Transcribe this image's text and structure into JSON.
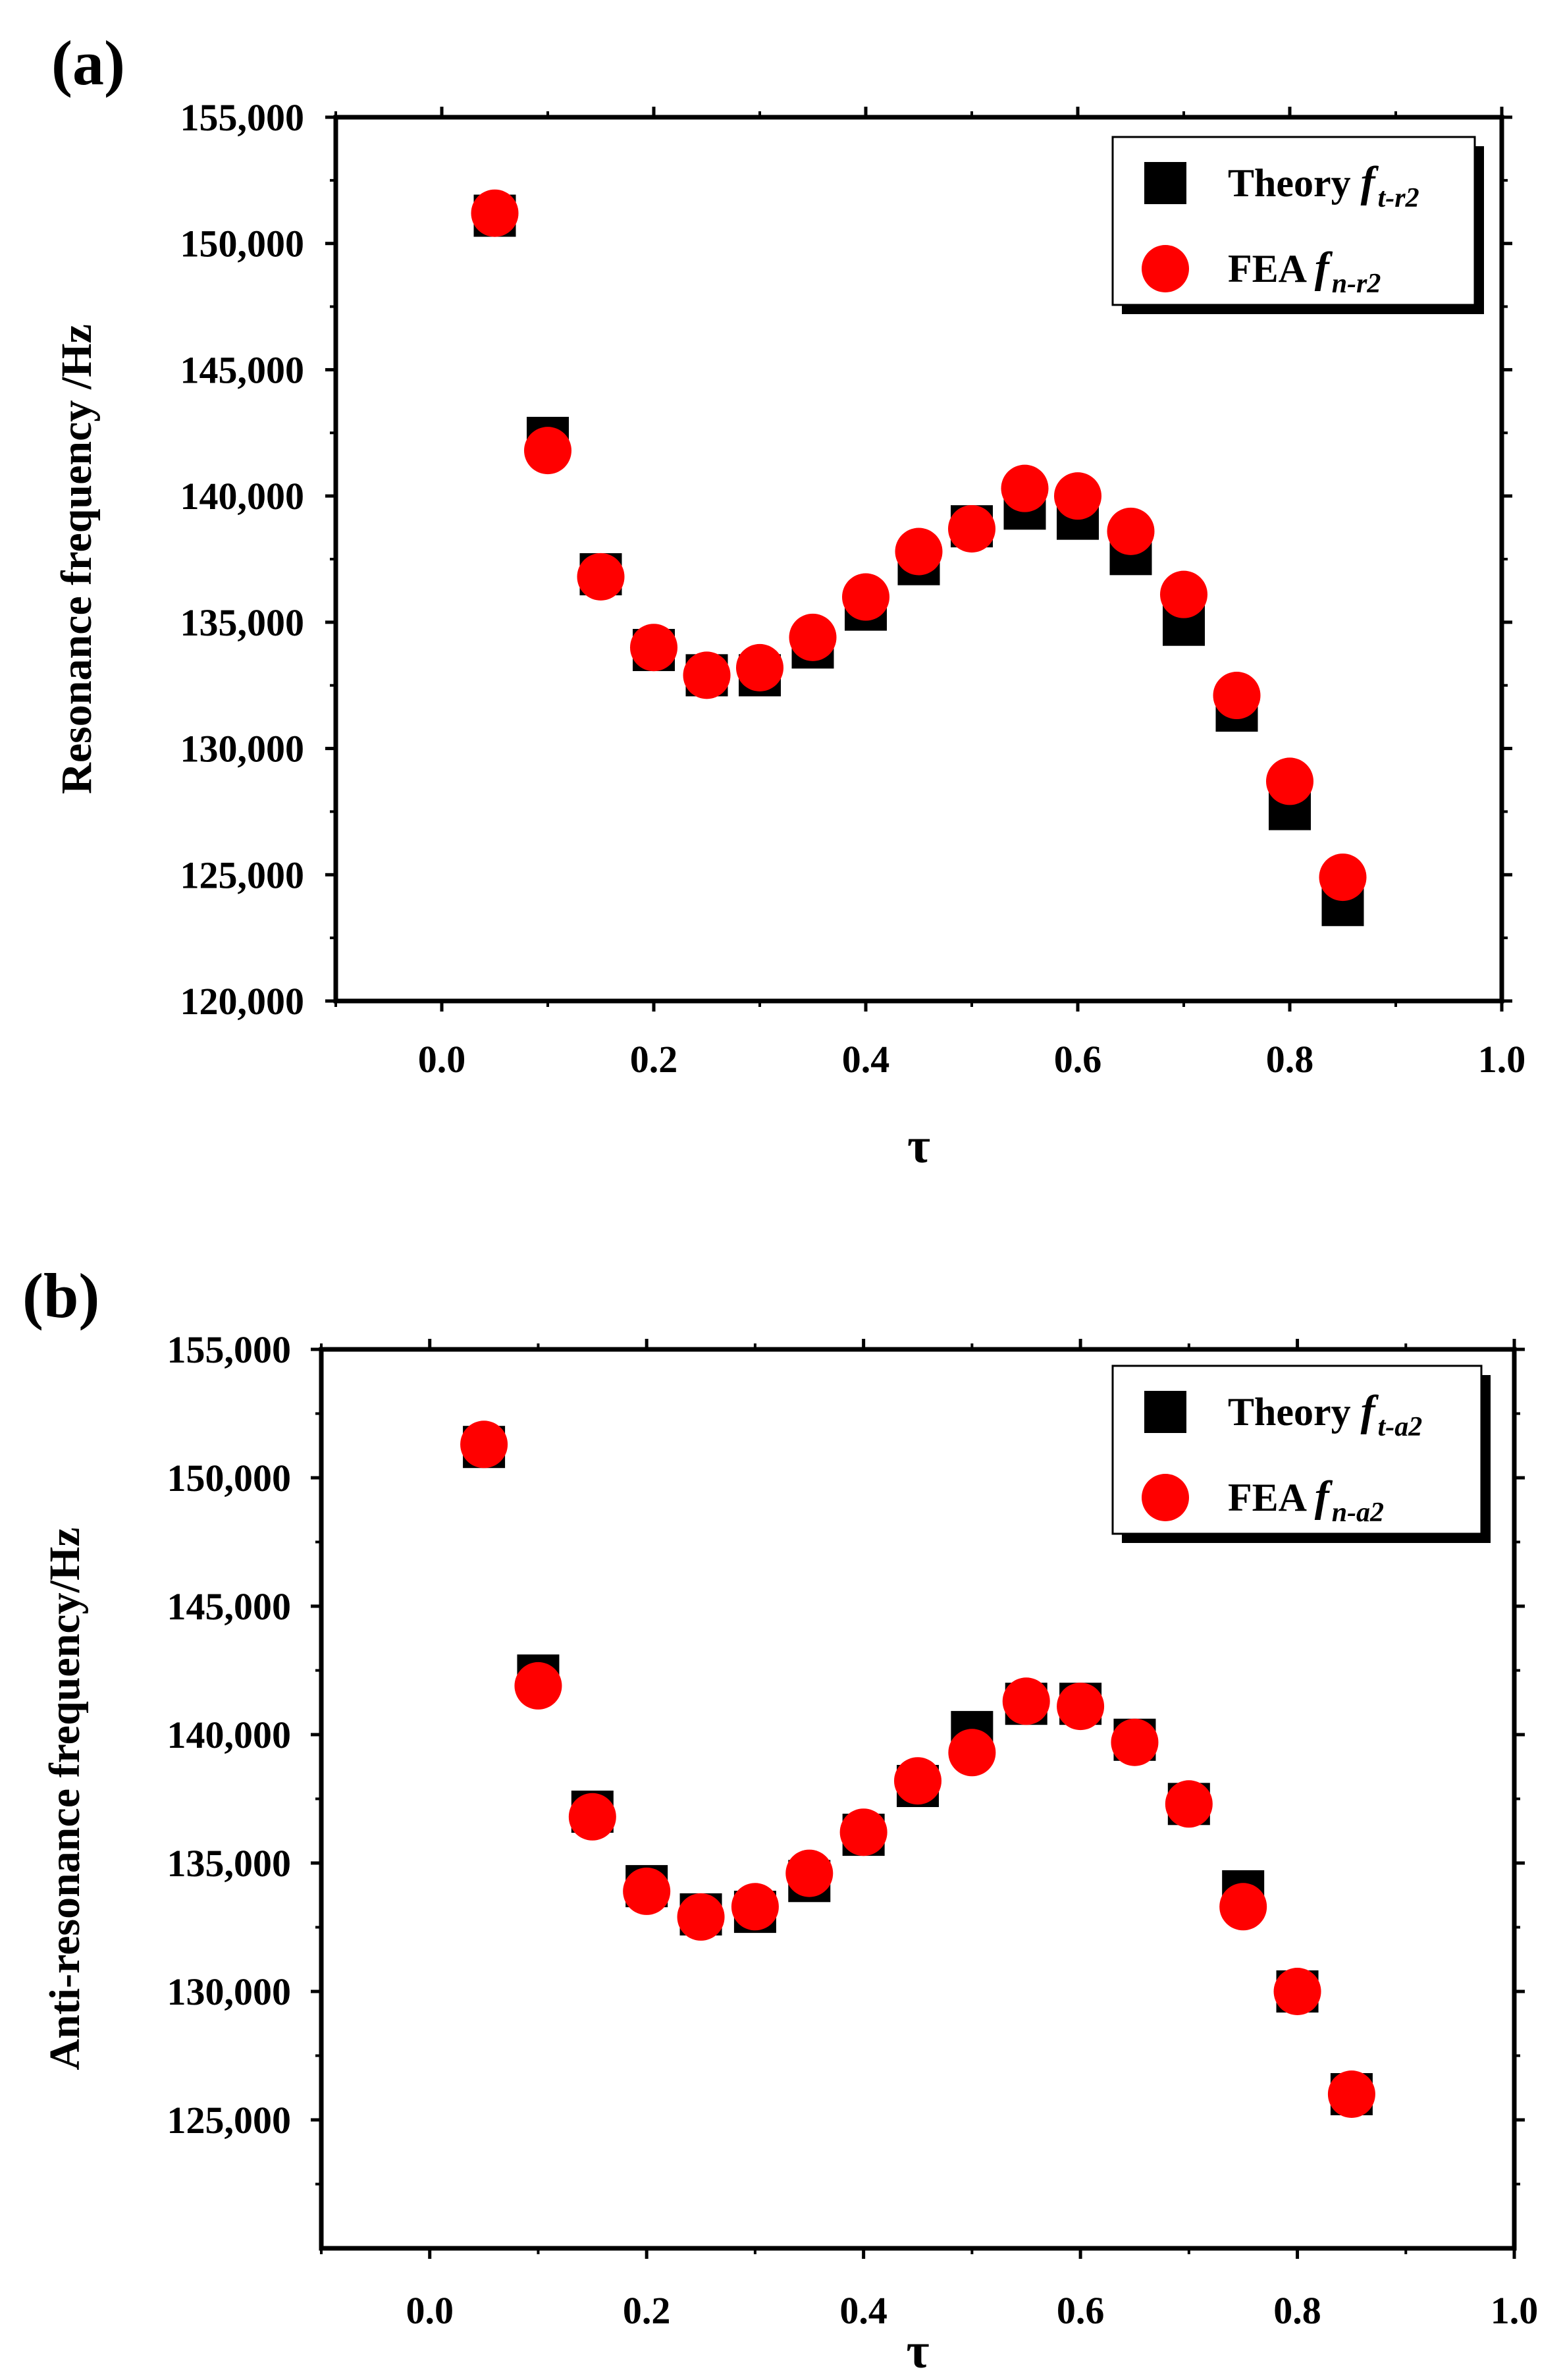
{
  "chart_data": [
    {
      "type": "scatter",
      "panel_label": "(a)",
      "xlabel": "τ",
      "ylabel": "Resonance frequency /Hz",
      "xlim": [
        -0.1,
        1.0
      ],
      "ylim": [
        120000,
        155000
      ],
      "xticks": [
        "0.0",
        "0.2",
        "0.4",
        "0.6",
        "0.8",
        "1.0"
      ],
      "yticks": [
        "120,000",
        "125,000",
        "130,000",
        "135,000",
        "140,000",
        "145,000",
        "150,000",
        "155,000"
      ],
      "legend_position": "top-right",
      "x": [
        0.05,
        0.1,
        0.15,
        0.2,
        0.25,
        0.3,
        0.35,
        0.4,
        0.45,
        0.5,
        0.55,
        0.6,
        0.65,
        0.7,
        0.75,
        0.8,
        0.85
      ],
      "series": [
        {
          "name": "Theory",
          "symbol": "f",
          "subscript": "t-r2",
          "marker": "square",
          "color": "#000000",
          "values": [
            151100,
            142300,
            136900,
            133900,
            132900,
            132900,
            134000,
            135500,
            137300,
            138800,
            139500,
            139100,
            137700,
            134900,
            131500,
            127600,
            123800
          ]
        },
        {
          "name": "FEA",
          "symbol": "f",
          "subscript": "n-r2",
          "marker": "circle",
          "color": "#ff0000",
          "values": [
            151200,
            141800,
            136800,
            134000,
            132900,
            133200,
            134400,
            136000,
            137800,
            138700,
            140300,
            140000,
            138600,
            136100,
            132100,
            128700,
            124900
          ]
        }
      ]
    },
    {
      "type": "scatter",
      "panel_label": "(b)",
      "xlabel": "τ",
      "ylabel": "Anti-resonance frequency/Hz",
      "xlim": [
        -0.1,
        1.0
      ],
      "ylim": [
        120000,
        155000
      ],
      "xticks": [
        "0.0",
        "0.2",
        "0.4",
        "0.6",
        "0.8",
        "1.0"
      ],
      "yticks": [
        "125,000",
        "130,000",
        "135,000",
        "140,000",
        "145,000",
        "150,000",
        "155,000"
      ],
      "legend_position": "top-right",
      "x": [
        0.05,
        0.1,
        0.15,
        0.2,
        0.25,
        0.3,
        0.35,
        0.4,
        0.45,
        0.5,
        0.55,
        0.6,
        0.65,
        0.7,
        0.75,
        0.8,
        0.85
      ],
      "series": [
        {
          "name": "Theory",
          "symbol": "f",
          "subscript": "t-a2",
          "marker": "square",
          "color": "#000000",
          "values": [
            151200,
            142300,
            137000,
            134100,
            133000,
            133100,
            134300,
            136100,
            138000,
            140100,
            141200,
            141200,
            139800,
            137300,
            133900,
            130000,
            126000
          ]
        },
        {
          "name": "FEA",
          "symbol": "f",
          "subscript": "n-a2",
          "marker": "circle",
          "color": "#ff0000",
          "values": [
            151300,
            141900,
            136800,
            133900,
            132900,
            133300,
            134600,
            136200,
            138200,
            139300,
            141300,
            141100,
            139700,
            137300,
            133300,
            130000,
            126000
          ]
        }
      ]
    }
  ]
}
